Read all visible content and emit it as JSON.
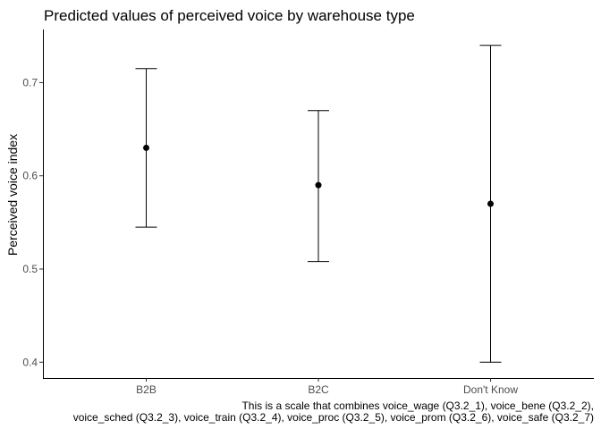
{
  "chart_data": {
    "type": "scatter",
    "title": "Predicted values of perceived voice by warehouse type",
    "xlabel": "",
    "ylabel": "Perceived voice index",
    "categories": [
      "B2B",
      "B2C",
      "Don't Know"
    ],
    "values": [
      0.63,
      0.59,
      0.57
    ],
    "ci_low": [
      0.545,
      0.508,
      0.4
    ],
    "ci_high": [
      0.715,
      0.67,
      0.74
    ],
    "ylim": [
      0.383,
      0.757
    ],
    "yticks": [
      0.4,
      0.5,
      0.6,
      0.7
    ],
    "ytick_labels": [
      "0.4",
      "0.5",
      "0.6",
      "0.7"
    ],
    "grid": false,
    "caption_lines": [
      "This is a scale that combines voice_wage (Q3.2_1), voice_bene (Q3.2_2),",
      "voice_sched (Q3.2_3), voice_train (Q3.2_4), voice_proc (Q3.2_5), voice_prom (Q3.2_6), voice_safe (Q3.2_7)"
    ]
  }
}
